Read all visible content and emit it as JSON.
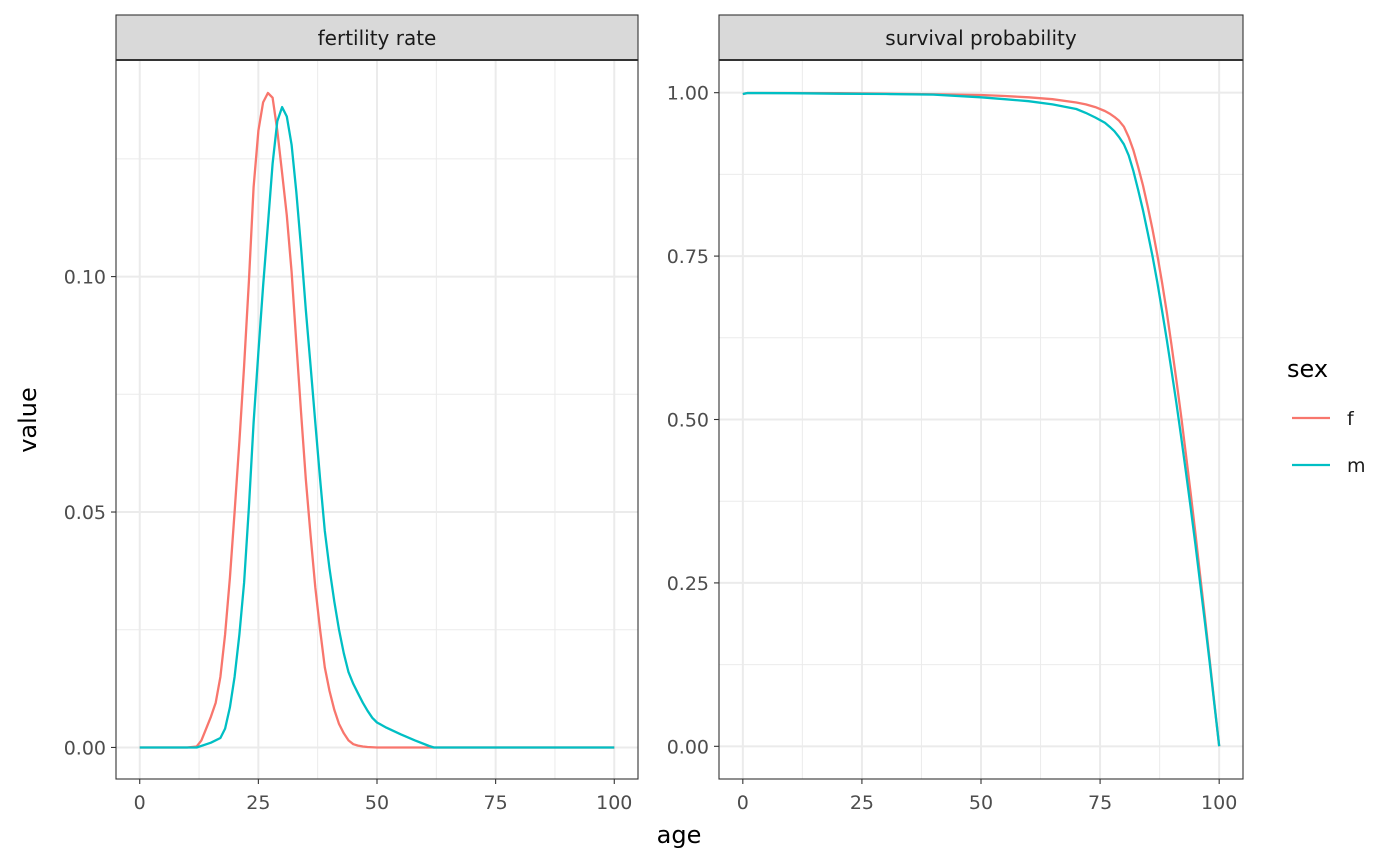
{
  "chart_data": {
    "type": "line",
    "xlabel": "age",
    "ylabel": "value",
    "legend": {
      "title": "sex",
      "position": "right",
      "entries": [
        {
          "label": "f",
          "color": "#F8766D"
        },
        {
          "label": "m",
          "color": "#00BFC4"
        }
      ]
    },
    "facets": [
      {
        "title": "fertility rate",
        "xlim": [
          -5,
          105
        ],
        "ylim": [
          -0.0067,
          0.146
        ],
        "x_ticks": [
          0,
          25,
          50,
          75,
          100
        ],
        "x_tick_labels": [
          "0",
          "25",
          "50",
          "75",
          "100"
        ],
        "y_ticks": [
          0,
          0.05,
          0.1
        ],
        "y_tick_labels": [
          "0.00",
          "0.05",
          "0.10"
        ],
        "grid": true,
        "series": [
          {
            "name": "f",
            "color": "#F8766D",
            "x": [
              0,
              5,
              10,
              12,
              13,
              14,
              15,
              16,
              17,
              18,
              19,
              20,
              21,
              22,
              23,
              24,
              25,
              26,
              27,
              28,
              29,
              30,
              31,
              32,
              33,
              34,
              35,
              36,
              37,
              38,
              39,
              40,
              41,
              42,
              43,
              44,
              45,
              46,
              47,
              48,
              50,
              55,
              60,
              65,
              75,
              100
            ],
            "y": [
              0,
              0,
              0,
              0.0002,
              0.0015,
              0.004,
              0.0065,
              0.0095,
              0.015,
              0.024,
              0.036,
              0.05,
              0.065,
              0.081,
              0.099,
              0.119,
              0.131,
              0.137,
              0.139,
              0.138,
              0.131,
              0.122,
              0.113,
              0.101,
              0.086,
              0.071,
              0.057,
              0.045,
              0.034,
              0.025,
              0.017,
              0.012,
              0.008,
              0.005,
              0.003,
              0.0015,
              0.0007,
              0.0004,
              0.0002,
              0.0001,
              0,
              0,
              0,
              0,
              0,
              0
            ]
          },
          {
            "name": "m",
            "color": "#00BFC4",
            "x": [
              0,
              5,
              10,
              12,
              15,
              17,
              18,
              19,
              20,
              21,
              22,
              23,
              24,
              25,
              26,
              27,
              28,
              29,
              30,
              31,
              32,
              33,
              34,
              35,
              36,
              37,
              38,
              39,
              40,
              41,
              42,
              43,
              44,
              45,
              46,
              47,
              48,
              49,
              50,
              52,
              55,
              58,
              61,
              62,
              70,
              80,
              100
            ],
            "y": [
              0,
              0,
              0,
              0,
              0.001,
              0.002,
              0.004,
              0.0085,
              0.015,
              0.024,
              0.035,
              0.051,
              0.069,
              0.084,
              0.098,
              0.111,
              0.124,
              0.133,
              0.136,
              0.134,
              0.128,
              0.118,
              0.106,
              0.093,
              0.081,
              0.069,
              0.057,
              0.046,
              0.038,
              0.031,
              0.025,
              0.02,
              0.016,
              0.0135,
              0.0115,
              0.0095,
              0.0078,
              0.0063,
              0.0053,
              0.0042,
              0.0028,
              0.0015,
              0.0003,
              0,
              0,
              0,
              0
            ]
          }
        ]
      },
      {
        "title": "survival probability",
        "xlim": [
          -5,
          105
        ],
        "ylim": [
          -0.05,
          1.05
        ],
        "x_ticks": [
          0,
          25,
          50,
          75,
          100
        ],
        "x_tick_labels": [
          "0",
          "25",
          "50",
          "75",
          "100"
        ],
        "y_ticks": [
          0,
          0.25,
          0.5,
          0.75,
          1.0
        ],
        "y_tick_labels": [
          "0.00",
          "0.25",
          "0.50",
          "0.75",
          "1.00"
        ],
        "grid": true,
        "series": [
          {
            "name": "f",
            "color": "#F8766D",
            "x": [
              0,
              1,
              10,
              20,
              30,
              40,
              50,
              55,
              60,
              65,
              70,
              72,
              74,
              76,
              77,
              78,
              79,
              80,
              81,
              82,
              83,
              84,
              85,
              86,
              87,
              88,
              89,
              90,
              91,
              92,
              93,
              94,
              95,
              96,
              97,
              98,
              99,
              100
            ],
            "y": [
              0.998,
              0.9995,
              0.9995,
              0.9993,
              0.9985,
              0.9975,
              0.9965,
              0.995,
              0.993,
              0.99,
              0.985,
              0.982,
              0.978,
              0.972,
              0.968,
              0.963,
              0.957,
              0.948,
              0.932,
              0.912,
              0.886,
              0.858,
              0.826,
              0.791,
              0.752,
              0.71,
              0.664,
              0.614,
              0.561,
              0.506,
              0.448,
              0.388,
              0.326,
              0.262,
              0.198,
              0.132,
              0.066,
              0.0
            ]
          },
          {
            "name": "m",
            "color": "#00BFC4",
            "x": [
              0,
              1,
              10,
              20,
              30,
              40,
              50,
              55,
              60,
              65,
              70,
              72,
              74,
              76,
              77,
              78,
              79,
              80,
              81,
              82,
              83,
              84,
              85,
              86,
              87,
              88,
              89,
              90,
              91,
              92,
              93,
              94,
              95,
              96,
              97,
              98,
              99,
              100
            ],
            "y": [
              0.998,
              0.9995,
              0.9992,
              0.9985,
              0.998,
              0.997,
              0.993,
              0.99,
              0.987,
              0.982,
              0.975,
              0.969,
              0.962,
              0.954,
              0.948,
              0.941,
              0.932,
              0.921,
              0.904,
              0.88,
              0.851,
              0.82,
              0.786,
              0.75,
              0.71,
              0.667,
              0.622,
              0.575,
              0.526,
              0.474,
              0.421,
              0.366,
              0.309,
              0.25,
              0.19,
              0.128,
              0.064,
              0.0
            ]
          }
        ]
      }
    ]
  }
}
